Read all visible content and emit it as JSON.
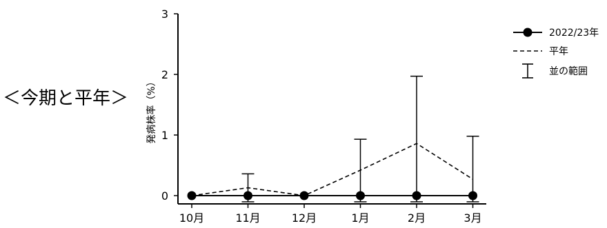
{
  "heading": "＜今期と平年＞",
  "chart_data": {
    "type": "line",
    "categories": [
      "10月",
      "11月",
      "12月",
      "1月",
      "2月",
      "3月"
    ],
    "ylabel": "発病株率（%）",
    "ylim": [
      0,
      3
    ],
    "yticks": [
      0,
      1,
      2,
      3
    ],
    "grid": false,
    "legend_position": "top-right",
    "series": [
      {
        "name": "2022/23年",
        "style": "solid-marker",
        "color": "#000000",
        "values": [
          0,
          0,
          0,
          0,
          0,
          0
        ]
      },
      {
        "name": "平年",
        "style": "dashed",
        "color": "#000000",
        "values": [
          0,
          0.13,
          0,
          0.42,
          0.86,
          0.27
        ]
      }
    ],
    "range": {
      "name": "並の範囲",
      "upper": [
        0,
        0.36,
        0,
        0.93,
        1.97,
        0.98
      ]
    }
  }
}
